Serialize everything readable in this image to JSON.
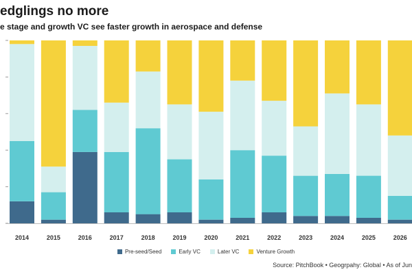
{
  "header": {
    "title": "edglings no more",
    "subtitle": "e stage and growth VC see faster growth in aerospace and defense"
  },
  "source": "Source: PitchBook • Geogrpahy: Global • As of Jun",
  "colors": {
    "pre_seed_seed": "#3f6a8c",
    "early_vc": "#5fcad2",
    "later_vc": "#d4efee",
    "venture_growth": "#f5d23c"
  },
  "chart_data": {
    "type": "bar",
    "stacked": true,
    "categories": [
      "2014",
      "2015",
      "2016",
      "2017",
      "2018",
      "2019",
      "2020",
      "2021",
      "2022",
      "2023",
      "2024",
      "2025",
      "2026"
    ],
    "series": [
      {
        "name": "Pre-seed/Seed",
        "color": "#3f6a8c",
        "values": [
          12,
          2,
          39,
          6,
          5,
          6,
          2,
          3,
          6,
          4,
          4,
          3,
          2
        ]
      },
      {
        "name": "Early VC",
        "color": "#5fcad2",
        "values": [
          33,
          15,
          23,
          33,
          47,
          29,
          22,
          37,
          31,
          22,
          23,
          23,
          13
        ]
      },
      {
        "name": "Later VC",
        "color": "#d4efee",
        "values": [
          53,
          14,
          35,
          27,
          31,
          30,
          37,
          38,
          30,
          27,
          44,
          39,
          33
        ]
      },
      {
        "name": "Venture Growth",
        "color": "#f5d23c",
        "values": [
          2,
          69,
          3,
          34,
          17,
          35,
          39,
          22,
          33,
          47,
          29,
          35,
          52
        ]
      }
    ],
    "ylim": [
      0,
      100
    ],
    "legend_position": "bottom"
  }
}
